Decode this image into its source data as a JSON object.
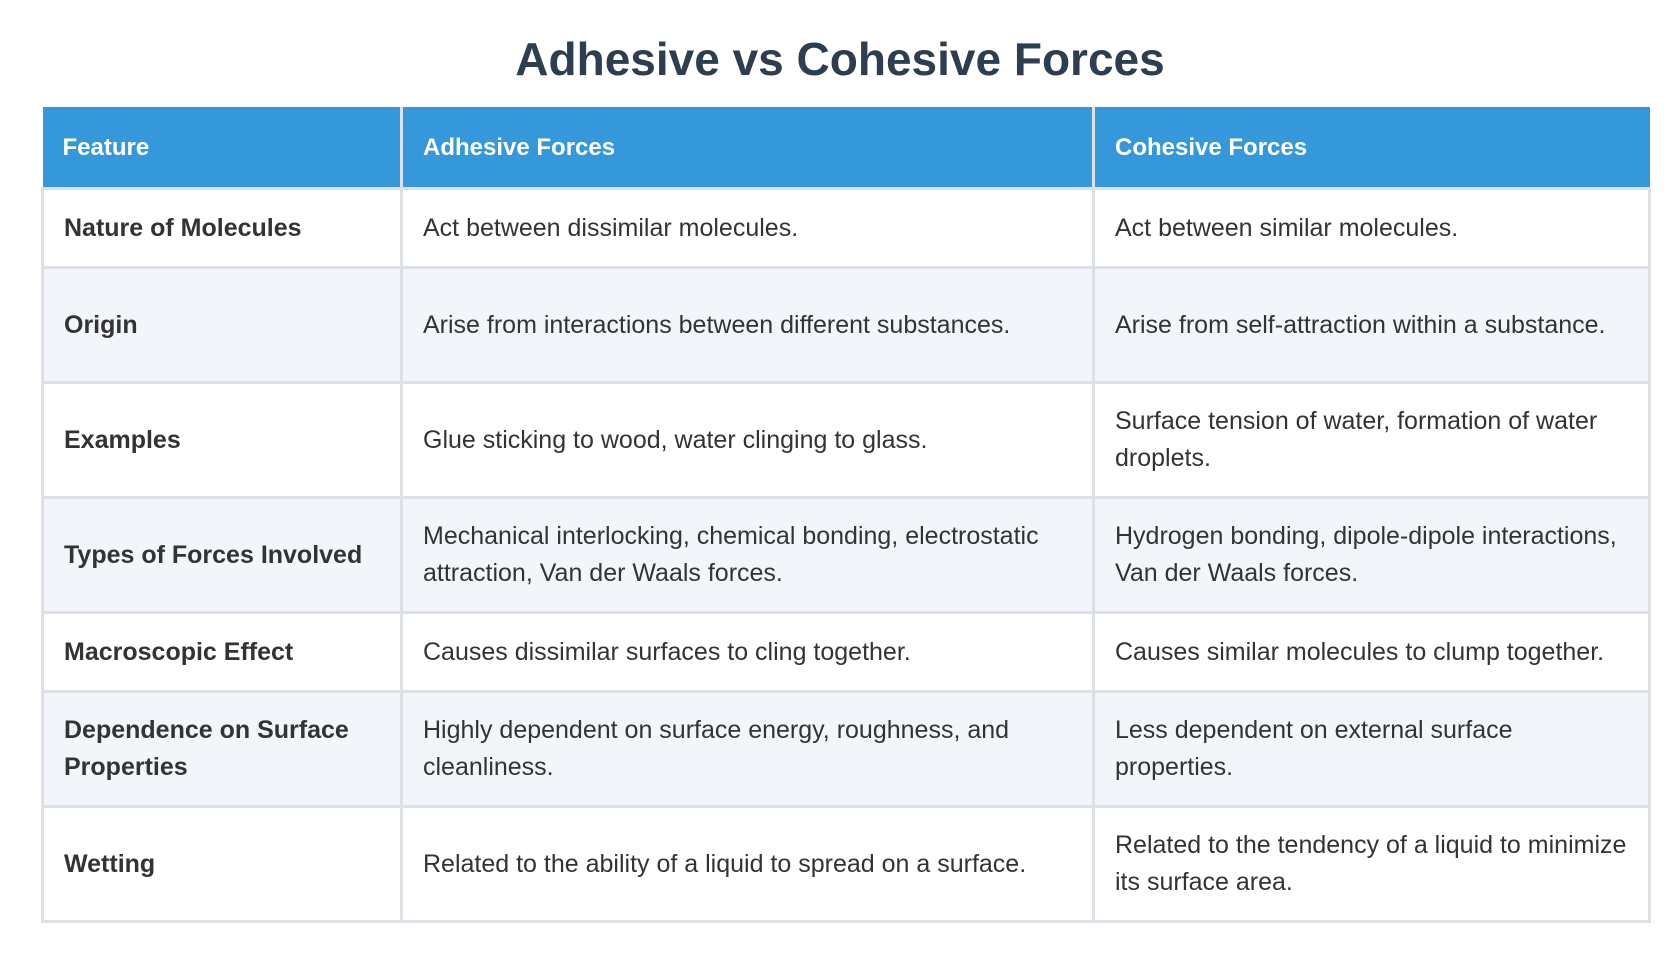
{
  "title": "Adhesive vs Cohesive Forces",
  "table": {
    "headers": [
      "Feature",
      "Adhesive Forces",
      "Cohesive Forces"
    ],
    "rows": [
      {
        "feature": "Nature of Molecules",
        "adhesive": "Act between dissimilar molecules.",
        "cohesive": "Act between similar molecules."
      },
      {
        "feature": "Origin",
        "adhesive": "Arise from interactions between different substances.",
        "cohesive": "Arise from self-attraction within a substance."
      },
      {
        "feature": "Examples",
        "adhesive": "Glue sticking to wood, water clinging to glass.",
        "cohesive": "Surface tension of water, formation of water droplets."
      },
      {
        "feature": "Types of Forces Involved",
        "adhesive": "Mechanical interlocking, chemical bonding, electrostatic attraction, Van der Waals forces.",
        "cohesive": "Hydrogen bonding, dipole-dipole interactions, Van der Waals forces."
      },
      {
        "feature": "Macroscopic Effect",
        "adhesive": "Causes dissimilar surfaces to cling together.",
        "cohesive": "Causes similar molecules to clump together."
      },
      {
        "feature": "Dependence on Surface Properties",
        "adhesive": "Highly dependent on surface energy, roughness, and cleanliness.",
        "cohesive": "Less dependent on external surface properties."
      },
      {
        "feature": "Wetting",
        "adhesive": "Related to the ability of a liquid to spread on a surface.",
        "cohesive": "Related to the tendency of a liquid to minimize its surface area."
      }
    ]
  }
}
